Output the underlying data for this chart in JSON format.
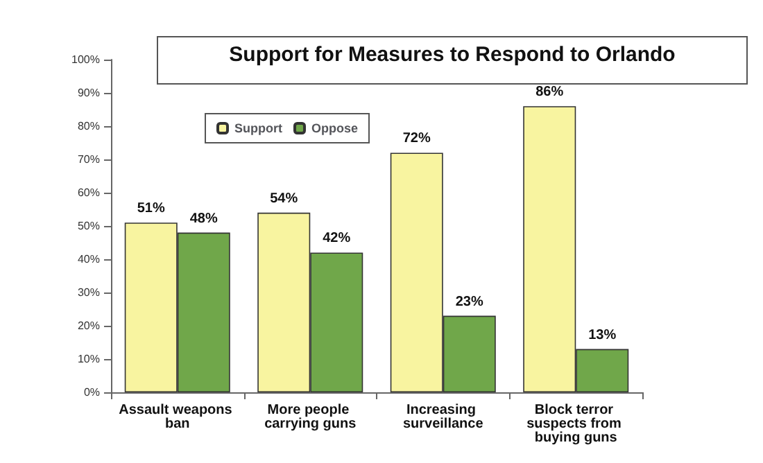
{
  "chart_data": {
    "type": "bar",
    "title": "Support for Measures to Respond to Orlando",
    "categories": [
      "Assault weapons ban",
      "More people carrying guns",
      "Increasing surveillance",
      "Block terror suspects from buying guns"
    ],
    "series": [
      {
        "name": "Support",
        "color": "#f8f4a0",
        "values": [
          51,
          54,
          72,
          86
        ],
        "value_labels": [
          "51%",
          "54%",
          "72%",
          "86%"
        ]
      },
      {
        "name": "Oppose",
        "color": "#70a74a",
        "values": [
          48,
          42,
          23,
          13
        ],
        "value_labels": [
          "48%",
          "42%",
          "23%",
          "13%"
        ]
      }
    ],
    "ylim": [
      0,
      100
    ],
    "yticks": [
      {
        "value": 0,
        "label": "0%"
      },
      {
        "value": 10,
        "label": "10%"
      },
      {
        "value": 20,
        "label": "20%"
      },
      {
        "value": 30,
        "label": "30%"
      },
      {
        "value": 40,
        "label": "40%"
      },
      {
        "value": 50,
        "label": "50%"
      },
      {
        "value": 60,
        "label": "60%"
      },
      {
        "value": 70,
        "label": "70%"
      },
      {
        "value": 80,
        "label": "80%"
      },
      {
        "value": 90,
        "label": "90%"
      },
      {
        "value": 100,
        "label": "100%"
      }
    ],
    "grid": false,
    "legend": "top left"
  }
}
